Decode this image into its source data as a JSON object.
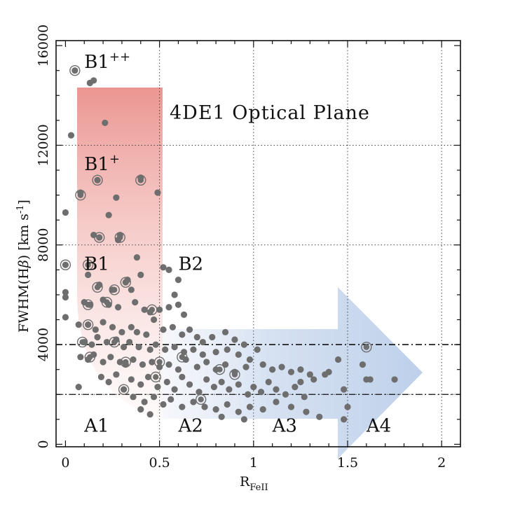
{
  "chart_data": {
    "type": "scatter",
    "title": "4DE1 Optical Plane",
    "xlabel": {
      "main": "R",
      "sub": "FeII"
    },
    "ylabel": {
      "pre": "FWHM(H",
      "greek": "β",
      "post": ") [km s",
      "sup": "-1",
      "end": "]"
    },
    "xlim": [
      -0.05,
      2.1
    ],
    "ylim": [
      -100,
      16200
    ],
    "x_ticks": [
      {
        "value": 0,
        "label": "0"
      },
      {
        "value": 0.5,
        "label": "0.5"
      },
      {
        "value": 1,
        "label": "1"
      },
      {
        "value": 1.5,
        "label": "1.5"
      },
      {
        "value": 2,
        "label": "2"
      }
    ],
    "y_ticks": [
      {
        "value": 0,
        "label": "0"
      },
      {
        "value": 4000,
        "label": "4000"
      },
      {
        "value": 8000,
        "label": "8000"
      },
      {
        "value": 12000,
        "label": "12000"
      },
      {
        "value": 16000,
        "label": "16000"
      }
    ],
    "grid": true,
    "dotted_grid_x": [
      0.5,
      1.0,
      1.5,
      2.0
    ],
    "dotted_grid_y": [
      2000,
      8000,
      12000
    ],
    "dashdot_lines_y": [
      4000,
      2000
    ],
    "regions": [
      {
        "name": "B1",
        "sup": "++",
        "x": 0.1,
        "y": 15100
      },
      {
        "name": "B1",
        "sup": "+",
        "x": 0.1,
        "y": 11000
      },
      {
        "name": "B1",
        "sup": "",
        "x": 0.1,
        "y": 7000
      },
      {
        "name": "B2",
        "sup": "",
        "x": 0.6,
        "y": 7000
      },
      {
        "name": "A1",
        "sup": "",
        "x": 0.1,
        "y": 500
      },
      {
        "name": "A2",
        "sup": "",
        "x": 0.6,
        "y": 500
      },
      {
        "name": "A3",
        "sup": "",
        "x": 1.1,
        "y": 500
      },
      {
        "name": "A4",
        "sup": "",
        "x": 1.6,
        "y": 500
      }
    ],
    "colors": {
      "point": "#6e6e6e",
      "arrow_red": "#e58888",
      "arrow_blue": "#b7cde9"
    },
    "series": [
      {
        "name": "sources",
        "points": [
          [
            0.05,
            15000
          ],
          [
            0.13,
            14500
          ],
          [
            0.15,
            14600
          ],
          [
            0.21,
            12900
          ],
          [
            0.03,
            12400
          ],
          [
            0.17,
            10600
          ],
          [
            0.4,
            10700
          ],
          [
            0.08,
            10100
          ],
          [
            0.27,
            9900
          ],
          [
            0.49,
            10100
          ],
          [
            0.0,
            9300
          ],
          [
            0.23,
            9200
          ],
          [
            0.15,
            8400
          ],
          [
            0.18,
            8300
          ],
          [
            0.29,
            8400
          ],
          [
            0.28,
            8200
          ],
          [
            0.0,
            7200
          ],
          [
            0.38,
            7500
          ],
          [
            0.4,
            6800
          ],
          [
            0.52,
            7100
          ],
          [
            0.55,
            7000
          ],
          [
            0.6,
            6600
          ],
          [
            0.0,
            5900
          ],
          [
            0.0,
            6100
          ],
          [
            0.0,
            5100
          ],
          [
            0.12,
            6800
          ],
          [
            0.18,
            6400
          ],
          [
            0.25,
            6200
          ],
          [
            0.32,
            6500
          ],
          [
            0.33,
            6600
          ],
          [
            0.35,
            6200
          ],
          [
            0.37,
            5700
          ],
          [
            0.1,
            5700
          ],
          [
            0.13,
            5600
          ],
          [
            0.2,
            5800
          ],
          [
            0.23,
            5600
          ],
          [
            0.28,
            5500
          ],
          [
            0.42,
            5400
          ],
          [
            0.45,
            5300
          ],
          [
            0.47,
            5000
          ],
          [
            0.5,
            5400
          ],
          [
            0.55,
            5500
          ],
          [
            0.6,
            5600
          ],
          [
            0.58,
            6000
          ],
          [
            0.63,
            5200
          ],
          [
            0.07,
            4800
          ],
          [
            0.12,
            4800
          ],
          [
            0.16,
            4600
          ],
          [
            0.2,
            4900
          ],
          [
            0.25,
            4700
          ],
          [
            0.3,
            4500
          ],
          [
            0.35,
            4700
          ],
          [
            0.38,
            4500
          ],
          [
            0.43,
            4400
          ],
          [
            0.52,
            4600
          ],
          [
            0.57,
            4700
          ],
          [
            0.62,
            4400
          ],
          [
            0.66,
            4600
          ],
          [
            0.7,
            4300
          ],
          [
            0.73,
            4100
          ],
          [
            0.78,
            4300
          ],
          [
            0.85,
            4500
          ],
          [
            0.9,
            4200
          ],
          [
            0.95,
            4000
          ],
          [
            0.1,
            4100
          ],
          [
            0.14,
            4000
          ],
          [
            0.17,
            4300
          ],
          [
            0.22,
            4100
          ],
          [
            0.27,
            4200
          ],
          [
            0.31,
            3900
          ],
          [
            0.34,
            4100
          ],
          [
            0.39,
            3900
          ],
          [
            0.45,
            3800
          ],
          [
            0.48,
            4000
          ],
          [
            0.53,
            3800
          ],
          [
            0.58,
            3900
          ],
          [
            0.63,
            3700
          ],
          [
            0.68,
            3800
          ],
          [
            0.73,
            3600
          ],
          [
            0.8,
            3700
          ],
          [
            0.86,
            3800
          ],
          [
            0.92,
            3600
          ],
          [
            0.98,
            3400
          ],
          [
            1.02,
            3800
          ],
          [
            0.08,
            3500
          ],
          [
            0.12,
            3400
          ],
          [
            0.15,
            3600
          ],
          [
            0.2,
            3300
          ],
          [
            0.24,
            3500
          ],
          [
            0.29,
            3300
          ],
          [
            0.32,
            3200
          ],
          [
            0.36,
            3400
          ],
          [
            0.41,
            3200
          ],
          [
            0.46,
            3300
          ],
          [
            0.5,
            3100
          ],
          [
            0.55,
            3200
          ],
          [
            0.6,
            3000
          ],
          [
            0.64,
            3400
          ],
          [
            0.7,
            3100
          ],
          [
            0.75,
            3300
          ],
          [
            0.8,
            3000
          ],
          [
            0.85,
            3200
          ],
          [
            0.9,
            2900
          ],
          [
            0.96,
            3100
          ],
          [
            1.05,
            3200
          ],
          [
            1.1,
            3000
          ],
          [
            1.15,
            3100
          ],
          [
            1.2,
            2900
          ],
          [
            1.25,
            3000
          ],
          [
            1.3,
            2800
          ],
          [
            0.07,
            2300
          ],
          [
            0.19,
            2700
          ],
          [
            0.23,
            2500
          ],
          [
            0.27,
            2800
          ],
          [
            0.31,
            2200
          ],
          [
            0.35,
            2600
          ],
          [
            0.4,
            2400
          ],
          [
            0.44,
            2700
          ],
          [
            0.49,
            2300
          ],
          [
            0.54,
            2500
          ],
          [
            0.58,
            2200
          ],
          [
            0.62,
            2700
          ],
          [
            0.66,
            2400
          ],
          [
            0.71,
            2100
          ],
          [
            0.75,
            2600
          ],
          [
            0.79,
            2300
          ],
          [
            0.83,
            2500
          ],
          [
            0.87,
            2200
          ],
          [
            0.92,
            2400
          ],
          [
            0.97,
            2000
          ],
          [
            1.0,
            2300
          ],
          [
            1.04,
            2100
          ],
          [
            1.08,
            2500
          ],
          [
            1.12,
            2200
          ],
          [
            1.17,
            2000
          ],
          [
            1.22,
            2300
          ],
          [
            1.27,
            1900
          ],
          [
            0.36,
            1900
          ],
          [
            0.42,
            1700
          ],
          [
            0.47,
            1900
          ],
          [
            0.52,
            1600
          ],
          [
            0.56,
            1800
          ],
          [
            0.62,
            1500
          ],
          [
            0.68,
            1700
          ],
          [
            0.74,
            1500
          ],
          [
            0.8,
            1400
          ],
          [
            0.86,
            1600
          ],
          [
            0.92,
            1300
          ],
          [
            0.98,
            1500
          ],
          [
            1.05,
            1400
          ],
          [
            1.12,
            1700
          ],
          [
            1.2,
            1500
          ],
          [
            1.28,
            1300
          ],
          [
            1.35,
            1100
          ],
          [
            0.4,
            1400
          ],
          [
            0.45,
            1200
          ],
          [
            0.83,
            1100
          ],
          [
            0.95,
            1000
          ],
          [
            1.38,
            2800
          ],
          [
            1.4,
            2900
          ],
          [
            1.45,
            3400
          ],
          [
            1.5,
            1500
          ],
          [
            1.48,
            1000
          ],
          [
            1.6,
            2600
          ],
          [
            1.62,
            2600
          ],
          [
            1.75,
            2600
          ],
          [
            1.48,
            2200
          ],
          [
            1.58,
            3200
          ],
          [
            1.32,
            2600
          ],
          [
            1.25,
            2500
          ]
        ]
      },
      {
        "name": "circled",
        "points": [
          [
            0.05,
            15000
          ],
          [
            0.08,
            10000
          ],
          [
            0.17,
            10600
          ],
          [
            0.4,
            10600
          ],
          [
            0.18,
            8300
          ],
          [
            0.29,
            8300
          ],
          [
            0.0,
            7200
          ],
          [
            0.12,
            7200
          ],
          [
            0.17,
            6300
          ],
          [
            0.32,
            6500
          ],
          [
            0.26,
            6200
          ],
          [
            0.12,
            5600
          ],
          [
            0.22,
            5700
          ],
          [
            0.46,
            5400
          ],
          [
            0.12,
            4800
          ],
          [
            0.09,
            4100
          ],
          [
            0.26,
            4100
          ],
          [
            0.13,
            3500
          ],
          [
            0.32,
            3300
          ],
          [
            0.5,
            3300
          ],
          [
            0.62,
            3500
          ],
          [
            0.82,
            3000
          ],
          [
            0.9,
            2800
          ],
          [
            0.48,
            2700
          ],
          [
            0.31,
            2200
          ],
          [
            0.72,
            1800
          ],
          [
            1.6,
            3900
          ]
        ]
      }
    ]
  }
}
